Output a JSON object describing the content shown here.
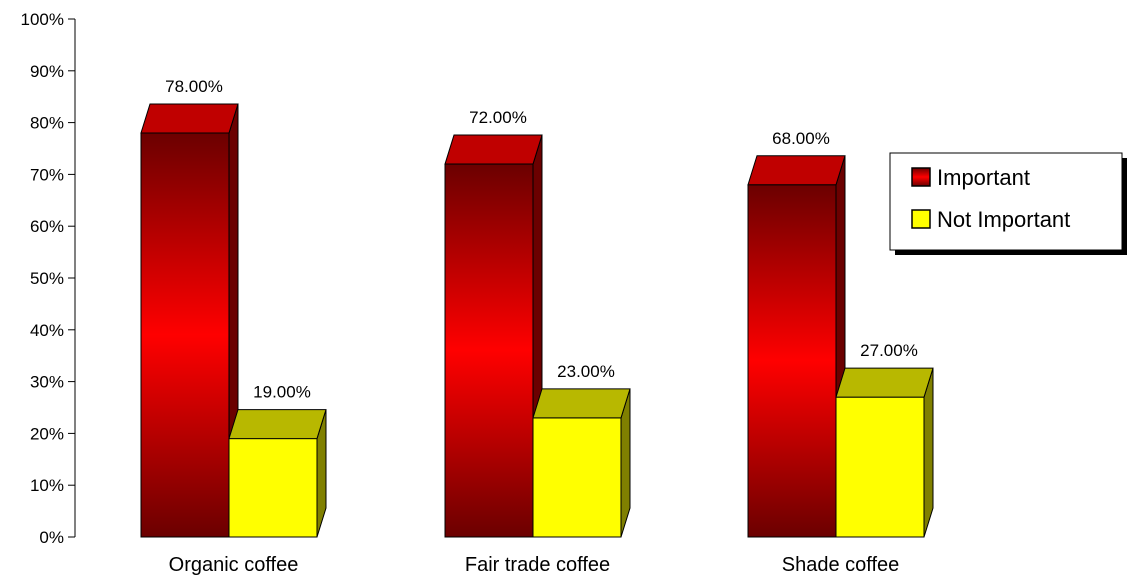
{
  "chart_data": {
    "type": "bar",
    "title": "",
    "xlabel": "",
    "ylabel": "",
    "ylim": [
      0,
      100
    ],
    "y_ticks": [
      0,
      10,
      20,
      30,
      40,
      50,
      60,
      70,
      80,
      90,
      100
    ],
    "y_tick_format": "{v}%",
    "categories": [
      "Organic coffee",
      "Fair trade coffee",
      "Shade coffee"
    ],
    "series": [
      {
        "name": "Important",
        "values": [
          78,
          72,
          68
        ],
        "labels": [
          "78.00%",
          "72.00%",
          "68.00%"
        ],
        "color": "#ff0000",
        "dark_color": "#6b0000",
        "top_color": "#c00000"
      },
      {
        "name": "Not Important",
        "values": [
          19,
          23,
          27
        ],
        "labels": [
          "19.00%",
          "23.00%",
          "27.00%"
        ],
        "color": "#ffff00",
        "dark_color": "#808000",
        "top_color": "#b8b800"
      }
    ],
    "legend_position": "right",
    "style": "3d-bar",
    "grid": false
  }
}
